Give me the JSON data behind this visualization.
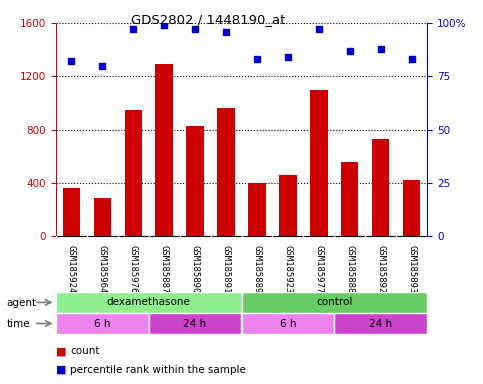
{
  "title": "GDS2802 / 1448190_at",
  "samples": [
    "GSM185924",
    "GSM185964",
    "GSM185976",
    "GSM185887",
    "GSM185890",
    "GSM185891",
    "GSM185889",
    "GSM185923",
    "GSM185977",
    "GSM185888",
    "GSM185892",
    "GSM185893"
  ],
  "counts": [
    360,
    290,
    950,
    1290,
    830,
    960,
    400,
    460,
    1100,
    560,
    730,
    420
  ],
  "percentile": [
    82,
    80,
    97,
    99,
    97,
    96,
    83,
    84,
    97,
    87,
    88,
    83
  ],
  "ylim_left": [
    0,
    1600
  ],
  "ylim_right": [
    0,
    100
  ],
  "yticks_left": [
    0,
    400,
    800,
    1200,
    1600
  ],
  "yticks_right": [
    0,
    25,
    50,
    75,
    100
  ],
  "ytick_right_labels": [
    "0",
    "25",
    "50",
    "75",
    "100%"
  ],
  "agent_labels": [
    {
      "label": "dexamethasone",
      "start": 0,
      "end": 6,
      "color": "#90EE90"
    },
    {
      "label": "control",
      "start": 6,
      "end": 12,
      "color": "#66CC66"
    }
  ],
  "time_labels": [
    {
      "label": "6 h",
      "start": 0,
      "end": 3,
      "color": "#EE82EE"
    },
    {
      "label": "24 h",
      "start": 3,
      "end": 6,
      "color": "#CC44CC"
    },
    {
      "label": "6 h",
      "start": 6,
      "end": 9,
      "color": "#EE82EE"
    },
    {
      "label": "24 h",
      "start": 9,
      "end": 12,
      "color": "#CC44CC"
    }
  ],
  "bar_color": "#CC0000",
  "dot_color": "#0000CC",
  "bg_color": "#FFFFFF",
  "plot_bg": "#FFFFFF",
  "xtick_bg": "#CCCCCC",
  "legend_count_color": "#CC0000",
  "legend_pct_color": "#0000CC"
}
